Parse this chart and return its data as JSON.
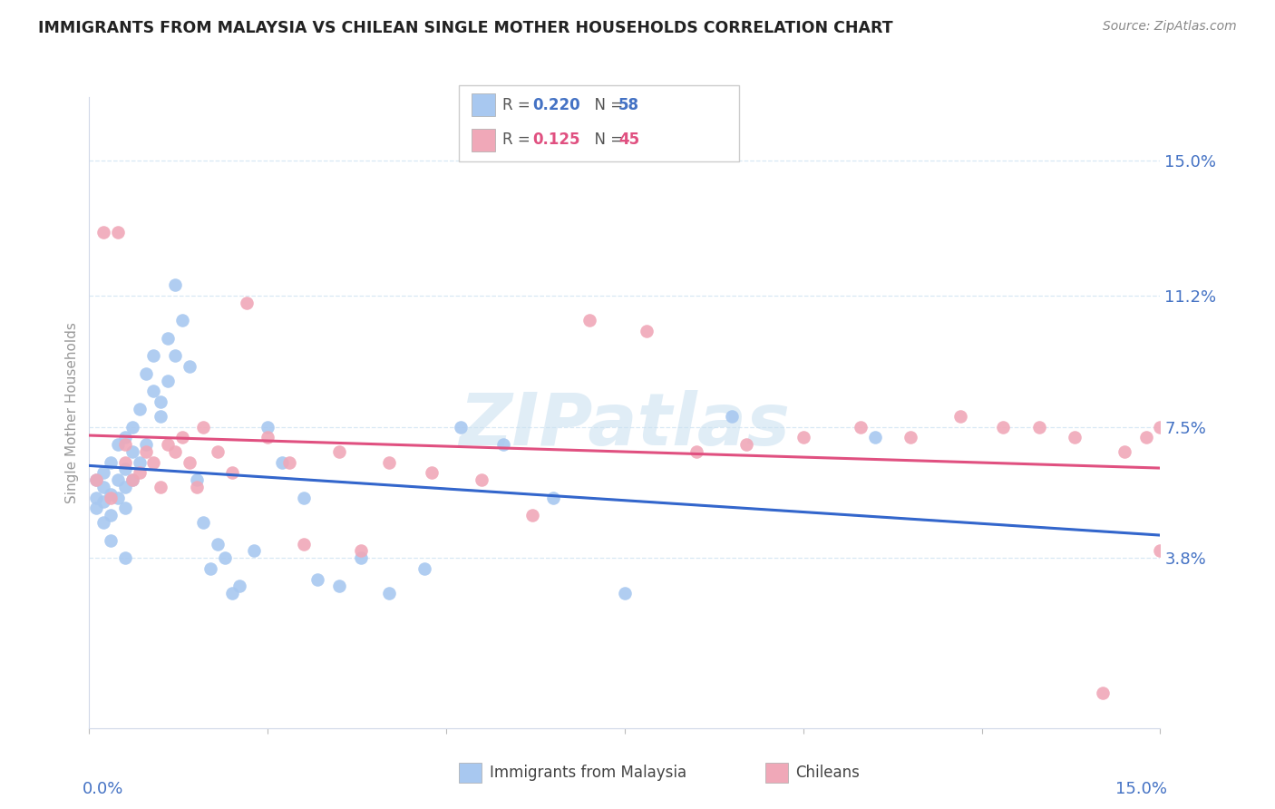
{
  "title": "IMMIGRANTS FROM MALAYSIA VS CHILEAN SINGLE MOTHER HOUSEHOLDS CORRELATION CHART",
  "source": "Source: ZipAtlas.com",
  "ylabel": "Single Mother Households",
  "ytick_labels": [
    "15.0%",
    "11.2%",
    "7.5%",
    "3.8%"
  ],
  "ytick_values": [
    0.15,
    0.112,
    0.075,
    0.038
  ],
  "xmin": 0.0,
  "xmax": 0.15,
  "ymin": -0.01,
  "ymax": 0.168,
  "color_malaysia": "#A8C8F0",
  "color_chilean": "#F0A8B8",
  "color_malaysia_line": "#3366CC",
  "color_chilean_line": "#E05080",
  "color_text_blue": "#4472C4",
  "color_text_pink": "#E05080",
  "color_grid": "#D8E8F5",
  "watermark_color": "#C8DFF0",
  "malaysia_scatter_x": [
    0.001,
    0.001,
    0.001,
    0.002,
    0.002,
    0.002,
    0.002,
    0.003,
    0.003,
    0.003,
    0.003,
    0.004,
    0.004,
    0.004,
    0.005,
    0.005,
    0.005,
    0.005,
    0.005,
    0.006,
    0.006,
    0.006,
    0.007,
    0.007,
    0.008,
    0.008,
    0.009,
    0.009,
    0.01,
    0.01,
    0.011,
    0.011,
    0.012,
    0.012,
    0.013,
    0.014,
    0.015,
    0.016,
    0.017,
    0.018,
    0.019,
    0.02,
    0.021,
    0.023,
    0.025,
    0.027,
    0.03,
    0.032,
    0.035,
    0.038,
    0.042,
    0.047,
    0.052,
    0.058,
    0.065,
    0.075,
    0.09,
    0.11
  ],
  "malaysia_scatter_y": [
    0.06,
    0.055,
    0.052,
    0.058,
    0.062,
    0.048,
    0.054,
    0.056,
    0.05,
    0.065,
    0.043,
    0.06,
    0.055,
    0.07,
    0.058,
    0.063,
    0.072,
    0.052,
    0.038,
    0.068,
    0.075,
    0.06,
    0.08,
    0.065,
    0.09,
    0.07,
    0.085,
    0.095,
    0.078,
    0.082,
    0.088,
    0.1,
    0.095,
    0.115,
    0.105,
    0.092,
    0.06,
    0.048,
    0.035,
    0.042,
    0.038,
    0.028,
    0.03,
    0.04,
    0.075,
    0.065,
    0.055,
    0.032,
    0.03,
    0.038,
    0.028,
    0.035,
    0.075,
    0.07,
    0.055,
    0.028,
    0.078,
    0.072
  ],
  "chilean_scatter_x": [
    0.001,
    0.002,
    0.003,
    0.004,
    0.005,
    0.005,
    0.006,
    0.007,
    0.008,
    0.009,
    0.01,
    0.011,
    0.012,
    0.013,
    0.014,
    0.015,
    0.016,
    0.018,
    0.02,
    0.022,
    0.025,
    0.028,
    0.03,
    0.035,
    0.038,
    0.042,
    0.048,
    0.055,
    0.062,
    0.07,
    0.078,
    0.085,
    0.092,
    0.1,
    0.108,
    0.115,
    0.122,
    0.128,
    0.133,
    0.138,
    0.142,
    0.145,
    0.148,
    0.15,
    0.15
  ],
  "chilean_scatter_y": [
    0.06,
    0.13,
    0.055,
    0.13,
    0.065,
    0.07,
    0.06,
    0.062,
    0.068,
    0.065,
    0.058,
    0.07,
    0.068,
    0.072,
    0.065,
    0.058,
    0.075,
    0.068,
    0.062,
    0.11,
    0.072,
    0.065,
    0.042,
    0.068,
    0.04,
    0.065,
    0.062,
    0.06,
    0.05,
    0.105,
    0.102,
    0.068,
    0.07,
    0.072,
    0.075,
    0.072,
    0.078,
    0.075,
    0.075,
    0.072,
    0.0,
    0.068,
    0.072,
    0.075,
    0.04
  ]
}
